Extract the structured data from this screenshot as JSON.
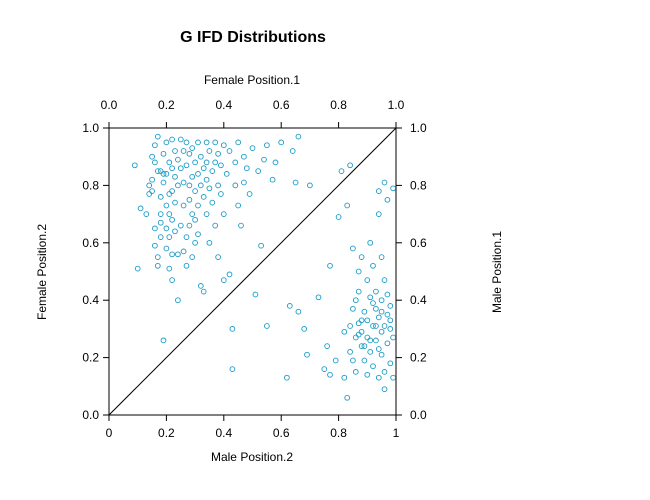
{
  "chart_data": {
    "type": "scatter",
    "title": "G IFD Distributions",
    "axes": {
      "bottom": {
        "label": "Male Position.2",
        "ticks": [
          "0",
          "0.2",
          "0.4",
          "0.6",
          "0.8",
          "1"
        ],
        "lim": [
          0,
          1
        ]
      },
      "top": {
        "label": "Female Position.1",
        "ticks": [
          "0.0",
          "0.2",
          "0.4",
          "0.6",
          "0.8",
          "1.0"
        ],
        "lim": [
          0,
          1
        ]
      },
      "left": {
        "label": "Female Position.2",
        "ticks": [
          "0.0",
          "0.2",
          "0.4",
          "0.6",
          "0.8",
          "1.0"
        ],
        "lim": [
          0,
          1
        ]
      },
      "right": {
        "label": "Male Position.1",
        "ticks": [
          "0.0",
          "0.2",
          "0.4",
          "0.6",
          "0.8",
          "1.0"
        ],
        "lim": [
          0,
          1
        ]
      }
    },
    "reference_line": {
      "from": [
        0,
        0
      ],
      "to": [
        1,
        1
      ]
    },
    "marker": {
      "shape": "open-circle",
      "color": "#1a9bc7"
    },
    "grid": false,
    "series": [
      {
        "values": [
          [
            0.09,
            0.87
          ],
          [
            0.1,
            0.51
          ],
          [
            0.11,
            0.72
          ],
          [
            0.13,
            0.7
          ],
          [
            0.14,
            0.77
          ],
          [
            0.14,
            0.8
          ],
          [
            0.15,
            0.78
          ],
          [
            0.15,
            0.82
          ],
          [
            0.15,
            0.9
          ],
          [
            0.16,
            0.88
          ],
          [
            0.16,
            0.94
          ],
          [
            0.16,
            0.65
          ],
          [
            0.16,
            0.59
          ],
          [
            0.17,
            0.97
          ],
          [
            0.17,
            0.85
          ],
          [
            0.17,
            0.55
          ],
          [
            0.17,
            0.52
          ],
          [
            0.18,
            0.85
          ],
          [
            0.18,
            0.76
          ],
          [
            0.18,
            0.7
          ],
          [
            0.18,
            0.67
          ],
          [
            0.18,
            0.62
          ],
          [
            0.19,
            0.91
          ],
          [
            0.19,
            0.84
          ],
          [
            0.19,
            0.81
          ],
          [
            0.19,
            0.26
          ],
          [
            0.2,
            0.95
          ],
          [
            0.2,
            0.84
          ],
          [
            0.2,
            0.73
          ],
          [
            0.2,
            0.65
          ],
          [
            0.2,
            0.58
          ],
          [
            0.21,
            0.88
          ],
          [
            0.21,
            0.77
          ],
          [
            0.21,
            0.7
          ],
          [
            0.21,
            0.62
          ],
          [
            0.21,
            0.51
          ],
          [
            0.22,
            0.96
          ],
          [
            0.22,
            0.86
          ],
          [
            0.22,
            0.78
          ],
          [
            0.22,
            0.68
          ],
          [
            0.22,
            0.56
          ],
          [
            0.22,
            0.47
          ],
          [
            0.23,
            0.92
          ],
          [
            0.23,
            0.83
          ],
          [
            0.23,
            0.74
          ],
          [
            0.23,
            0.64
          ],
          [
            0.24,
            0.89
          ],
          [
            0.24,
            0.8
          ],
          [
            0.24,
            0.56
          ],
          [
            0.24,
            0.4
          ],
          [
            0.25,
            0.96
          ],
          [
            0.25,
            0.86
          ],
          [
            0.25,
            0.66
          ],
          [
            0.26,
            0.92
          ],
          [
            0.26,
            0.81
          ],
          [
            0.26,
            0.73
          ],
          [
            0.26,
            0.57
          ],
          [
            0.27,
            0.95
          ],
          [
            0.27,
            0.87
          ],
          [
            0.27,
            0.62
          ],
          [
            0.27,
            0.52
          ],
          [
            0.28,
            0.91
          ],
          [
            0.28,
            0.8
          ],
          [
            0.28,
            0.75
          ],
          [
            0.28,
            0.66
          ],
          [
            0.29,
            0.93
          ],
          [
            0.29,
            0.83
          ],
          [
            0.29,
            0.7
          ],
          [
            0.29,
            0.55
          ],
          [
            0.3,
            0.88
          ],
          [
            0.3,
            0.78
          ],
          [
            0.3,
            0.68
          ],
          [
            0.3,
            0.6
          ],
          [
            0.31,
            0.95
          ],
          [
            0.31,
            0.84
          ],
          [
            0.31,
            0.73
          ],
          [
            0.31,
            0.63
          ],
          [
            0.32,
            0.9
          ],
          [
            0.32,
            0.8
          ],
          [
            0.32,
            0.45
          ],
          [
            0.33,
            0.86
          ],
          [
            0.33,
            0.76
          ],
          [
            0.33,
            0.43
          ],
          [
            0.34,
            0.95
          ],
          [
            0.34,
            0.88
          ],
          [
            0.34,
            0.82
          ],
          [
            0.34,
            0.7
          ],
          [
            0.35,
            0.92
          ],
          [
            0.35,
            0.79
          ],
          [
            0.35,
            0.6
          ],
          [
            0.36,
            0.85
          ],
          [
            0.36,
            0.74
          ],
          [
            0.37,
            0.95
          ],
          [
            0.37,
            0.88
          ],
          [
            0.37,
            0.66
          ],
          [
            0.38,
            0.91
          ],
          [
            0.38,
            0.8
          ],
          [
            0.38,
            0.55
          ],
          [
            0.39,
            0.87
          ],
          [
            0.39,
            0.77
          ],
          [
            0.4,
            0.94
          ],
          [
            0.4,
            0.7
          ],
          [
            0.4,
            0.47
          ],
          [
            0.41,
            0.84
          ],
          [
            0.42,
            0.92
          ],
          [
            0.42,
            0.49
          ],
          [
            0.43,
            0.3
          ],
          [
            0.43,
            0.16
          ],
          [
            0.44,
            0.88
          ],
          [
            0.44,
            0.8
          ],
          [
            0.45,
            0.95
          ],
          [
            0.45,
            0.73
          ],
          [
            0.46,
            0.66
          ],
          [
            0.47,
            0.9
          ],
          [
            0.47,
            0.81
          ],
          [
            0.48,
            0.86
          ],
          [
            0.49,
            0.77
          ],
          [
            0.5,
            0.93
          ],
          [
            0.51,
            0.42
          ],
          [
            0.52,
            0.85
          ],
          [
            0.53,
            0.59
          ],
          [
            0.54,
            0.89
          ],
          [
            0.55,
            0.31
          ],
          [
            0.55,
            0.94
          ],
          [
            0.57,
            0.82
          ],
          [
            0.58,
            0.88
          ],
          [
            0.6,
            0.95
          ],
          [
            0.62,
            0.13
          ],
          [
            0.63,
            0.38
          ],
          [
            0.64,
            0.92
          ],
          [
            0.65,
            0.81
          ],
          [
            0.66,
            0.97
          ],
          [
            0.66,
            0.36
          ],
          [
            0.68,
            0.3
          ],
          [
            0.69,
            0.21
          ],
          [
            0.7,
            0.8
          ],
          [
            0.73,
            0.41
          ],
          [
            0.75,
            0.16
          ],
          [
            0.76,
            0.24
          ],
          [
            0.77,
            0.52
          ],
          [
            0.77,
            0.14
          ],
          [
            0.79,
            0.19
          ],
          [
            0.8,
            0.69
          ],
          [
            0.81,
            0.85
          ],
          [
            0.82,
            0.29
          ],
          [
            0.82,
            0.13
          ],
          [
            0.83,
            0.06
          ],
          [
            0.83,
            0.73
          ],
          [
            0.84,
            0.87
          ],
          [
            0.84,
            0.31
          ],
          [
            0.84,
            0.22
          ],
          [
            0.85,
            0.58
          ],
          [
            0.85,
            0.37
          ],
          [
            0.85,
            0.19
          ],
          [
            0.86,
            0.4
          ],
          [
            0.86,
            0.27
          ],
          [
            0.86,
            0.15
          ],
          [
            0.87,
            0.5
          ],
          [
            0.87,
            0.43
          ],
          [
            0.87,
            0.32
          ],
          [
            0.88,
            0.24
          ],
          [
            0.88,
            0.55
          ],
          [
            0.88,
            0.29
          ],
          [
            0.89,
            0.36
          ],
          [
            0.89,
            0.19
          ],
          [
            0.9,
            0.47
          ],
          [
            0.9,
            0.27
          ],
          [
            0.9,
            0.33
          ],
          [
            0.91,
            0.41
          ],
          [
            0.91,
            0.22
          ],
          [
            0.91,
            0.6
          ],
          [
            0.92,
            0.52
          ],
          [
            0.92,
            0.31
          ],
          [
            0.92,
            0.17
          ],
          [
            0.93,
            0.37
          ],
          [
            0.93,
            0.26
          ],
          [
            0.93,
            0.43
          ],
          [
            0.94,
            0.34
          ],
          [
            0.94,
            0.78
          ],
          [
            0.94,
            0.7
          ],
          [
            0.94,
            0.13
          ],
          [
            0.95,
            0.29
          ],
          [
            0.95,
            0.4
          ],
          [
            0.95,
            0.55
          ],
          [
            0.95,
            0.21
          ],
          [
            0.96,
            0.81
          ],
          [
            0.96,
            0.31
          ],
          [
            0.96,
            0.47
          ],
          [
            0.96,
            0.09
          ],
          [
            0.97,
            0.42
          ],
          [
            0.97,
            0.25
          ],
          [
            0.97,
            0.35
          ],
          [
            0.97,
            0.75
          ],
          [
            0.98,
            0.3
          ],
          [
            0.98,
            0.18
          ],
          [
            0.98,
            0.33
          ],
          [
            0.99,
            0.13
          ],
          [
            0.99,
            0.27
          ],
          [
            0.99,
            0.79
          ],
          [
            0.9,
            0.14
          ],
          [
            0.89,
            0.24
          ],
          [
            0.93,
            0.31
          ],
          [
            0.92,
            0.39
          ],
          [
            0.95,
            0.36
          ],
          [
            0.91,
            0.26
          ],
          [
            0.94,
            0.23
          ],
          [
            0.96,
            0.15
          ],
          [
            0.88,
            0.33
          ],
          [
            0.87,
            0.28
          ],
          [
            0.98,
            0.38
          ]
        ]
      }
    ]
  }
}
